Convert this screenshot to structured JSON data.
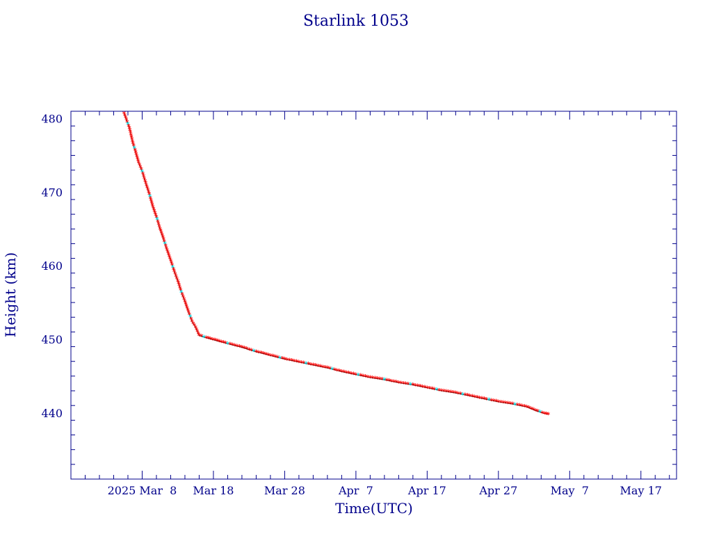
{
  "chart_data": {
    "type": "line",
    "title": "Starlink 1053",
    "xlabel": "Time(UTC)",
    "ylabel": "Height (km)",
    "x_tick_labels": [
      "2025 Mar  8",
      "Mar 18",
      "Mar 28",
      "Apr  7",
      "Apr 17",
      "Apr 27",
      "May  7",
      "May 17"
    ],
    "x_major_ticks": [
      "2025-03-08",
      "2025-03-18",
      "2025-03-28",
      "2025-04-07",
      "2025-04-17",
      "2025-04-27",
      "2025-05-07",
      "2025-05-17"
    ],
    "xlim": [
      "2025-02-26",
      "2025-05-22"
    ],
    "y_ticks": [
      440,
      450,
      460,
      470,
      480
    ],
    "ylim": [
      431,
      481
    ],
    "grid": false,
    "legend": false,
    "series": [
      {
        "line_color": "#000000",
        "marker_colors": [
          "#ff0000",
          "#00e5ee"
        ],
        "points": [
          {
            "x": "2025-03-05T11:00",
            "y": 480.7
          },
          {
            "x": "2025-03-06T05:00",
            "y": 478.7
          },
          {
            "x": "2025-03-06T17:00",
            "y": 476.6
          },
          {
            "x": "2025-03-07T00:00",
            "y": 475.7
          },
          {
            "x": "2025-03-07T12:00",
            "y": 474.0
          },
          {
            "x": "2025-03-08T00:00",
            "y": 472.8
          },
          {
            "x": "2025-03-08T12:00",
            "y": 471.2
          },
          {
            "x": "2025-03-09T00:00",
            "y": 469.7
          },
          {
            "x": "2025-03-09T12:00",
            "y": 468.0
          },
          {
            "x": "2025-03-10T00:00",
            "y": 466.6
          },
          {
            "x": "2025-03-10T12:00",
            "y": 465.0
          },
          {
            "x": "2025-03-11T00:00",
            "y": 463.6
          },
          {
            "x": "2025-03-11T12:00",
            "y": 462.1
          },
          {
            "x": "2025-03-12T00:00",
            "y": 460.7
          },
          {
            "x": "2025-03-12T12:00",
            "y": 459.2
          },
          {
            "x": "2025-03-13T00:00",
            "y": 457.9
          },
          {
            "x": "2025-03-13T12:00",
            "y": 456.4
          },
          {
            "x": "2025-03-14T00:00",
            "y": 455.1
          },
          {
            "x": "2025-03-14T12:00",
            "y": 453.7
          },
          {
            "x": "2025-03-15T00:00",
            "y": 452.4
          },
          {
            "x": "2025-03-15T12:00",
            "y": 451.6
          },
          {
            "x": "2025-03-16T00:00",
            "y": 450.5
          },
          {
            "x": "2025-03-17T00:00",
            "y": 450.2
          },
          {
            "x": "2025-03-18T12:00",
            "y": 449.8
          },
          {
            "x": "2025-03-20T00:00",
            "y": 449.4
          },
          {
            "x": "2025-03-22T00:00",
            "y": 448.9
          },
          {
            "x": "2025-03-24T00:00",
            "y": 448.3
          },
          {
            "x": "2025-03-26T00:00",
            "y": 447.8
          },
          {
            "x": "2025-03-28T00:00",
            "y": 447.3
          },
          {
            "x": "2025-03-30T00:00",
            "y": 446.9
          },
          {
            "x": "2025-04-01T00:00",
            "y": 446.5
          },
          {
            "x": "2025-04-03T00:00",
            "y": 446.1
          },
          {
            "x": "2025-04-05T00:00",
            "y": 445.6
          },
          {
            "x": "2025-04-07T00:00",
            "y": 445.2
          },
          {
            "x": "2025-04-09T00:00",
            "y": 444.8
          },
          {
            "x": "2025-04-11T00:00",
            "y": 444.5
          },
          {
            "x": "2025-04-13T00:00",
            "y": 444.1
          },
          {
            "x": "2025-04-15T00:00",
            "y": 443.8
          },
          {
            "x": "2025-04-17T00:00",
            "y": 443.4
          },
          {
            "x": "2025-04-19T00:00",
            "y": 443.0
          },
          {
            "x": "2025-04-21T00:00",
            "y": 442.7
          },
          {
            "x": "2025-04-23T00:00",
            "y": 442.3
          },
          {
            "x": "2025-04-25T00:00",
            "y": 441.9
          },
          {
            "x": "2025-04-27T00:00",
            "y": 441.5
          },
          {
            "x": "2025-04-29T00:00",
            "y": 441.2
          },
          {
            "x": "2025-05-01T00:00",
            "y": 440.8
          },
          {
            "x": "2025-05-02T12:00",
            "y": 440.2
          },
          {
            "x": "2025-05-03T12:00",
            "y": 439.9
          },
          {
            "x": "2025-05-04T00:00",
            "y": 439.8
          }
        ]
      }
    ]
  }
}
